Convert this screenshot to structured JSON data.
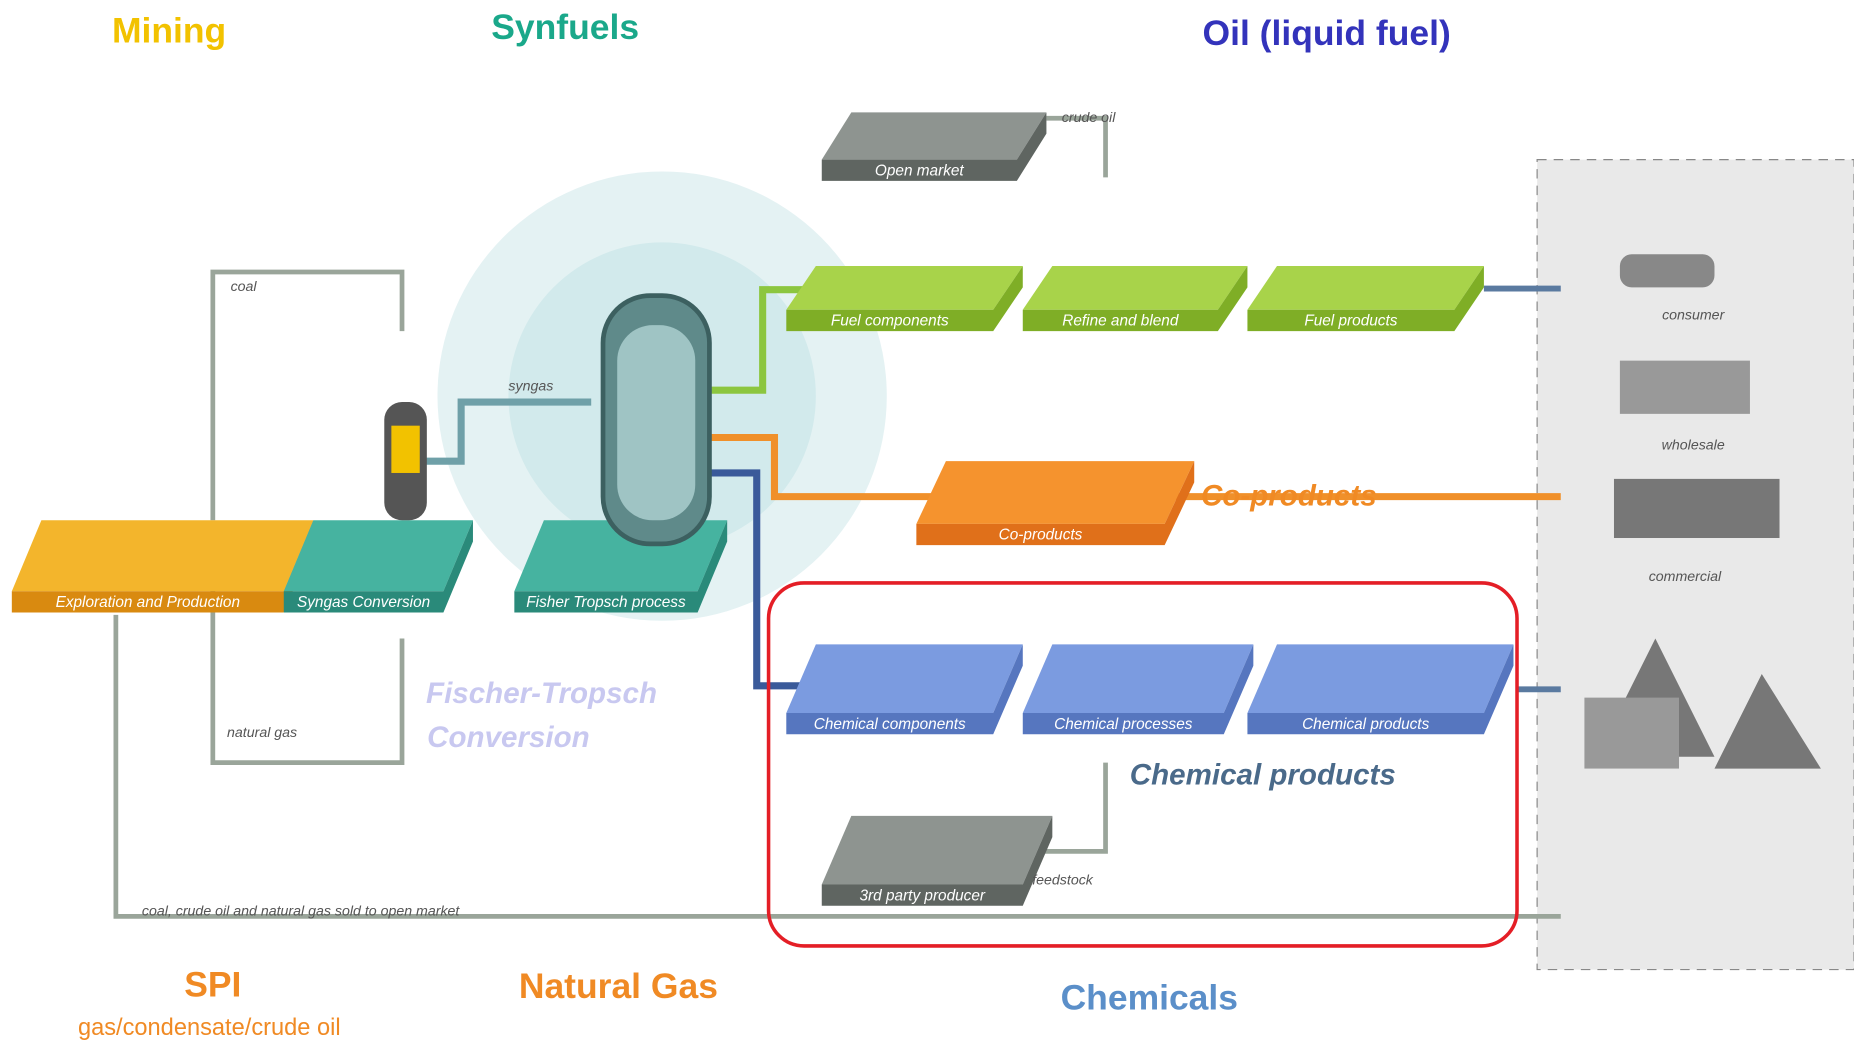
{
  "headers": {
    "mining": "Mining",
    "synfuels": "Synfuels",
    "oil": "Oil (liquid fuel)",
    "spi": "SPI",
    "spi_sub": "gas/condensate/crude oil",
    "natural_gas": "Natural Gas",
    "chemicals": "Chemicals"
  },
  "platforms": [
    "Exploration and Production",
    "Syngas Conversion",
    "Fisher Tropsch process",
    "Open market",
    "Fuel components",
    "Refine and blend",
    "Fuel products",
    "Co-products",
    "Chemical components",
    "Chemical processes",
    "Chemical products",
    "3rd party producer"
  ],
  "flow_labels": {
    "coal": "coal",
    "natural_gas": "natural gas",
    "syngas": "syngas",
    "crude_oil": "crude oil",
    "feedstock": "feedstock",
    "open_market": "coal, crude oil and natural gas sold to open market"
  },
  "markets": [
    "consumer",
    "wholesale",
    "commercial"
  ],
  "overlays": {
    "fischer_tropsch": [
      "Fischer-Tropsch",
      "Conversion"
    ],
    "co_products": "Co-products",
    "chemical_products": "Chemical products"
  }
}
